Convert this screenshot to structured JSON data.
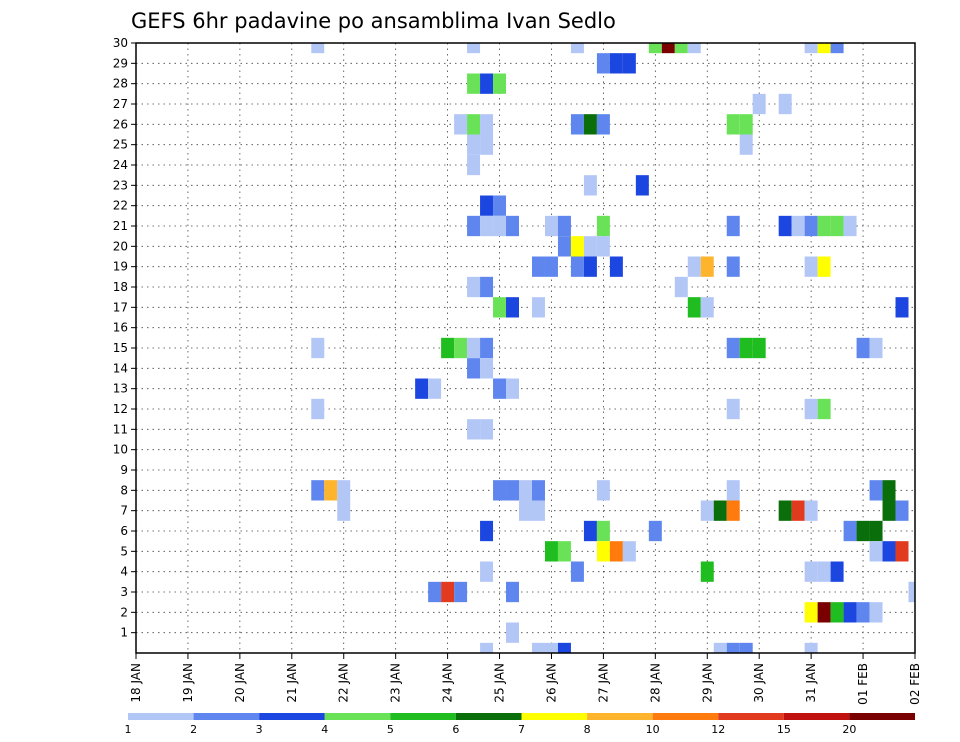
{
  "chart_data": {
    "type": "heatmap",
    "title": "GEFS 6hr padavine po ansamblima Ivan Sedlo",
    "xlabel": "",
    "ylabel": "",
    "x_tick_labels": [
      "18 JAN",
      "19 JAN",
      "20 JAN",
      "21 JAN",
      "22 JAN",
      "23 JAN",
      "24 JAN",
      "25 JAN",
      "26 JAN",
      "27 JAN",
      "28 JAN",
      "29 JAN",
      "30 JAN",
      "31 JAN",
      "01 FEB",
      "02 FEB"
    ],
    "y_tick_labels": [
      "1",
      "2",
      "3",
      "4",
      "5",
      "6",
      "7",
      "8",
      "9",
      "10",
      "11",
      "12",
      "13",
      "14",
      "15",
      "16",
      "17",
      "18",
      "19",
      "20",
      "21",
      "22",
      "23",
      "24",
      "25",
      "26",
      "27",
      "28",
      "29",
      "30"
    ],
    "xlim": [
      0,
      60
    ],
    "ylim": [
      0,
      30
    ],
    "grid": true,
    "time_step_hours": 6,
    "colorbar": {
      "levels": [
        "1",
        "2",
        "3",
        "4",
        "5",
        "6",
        "7",
        "8",
        "10",
        "12",
        "15",
        "20"
      ],
      "colors": [
        "#b3c7f7",
        "#5e86ee",
        "#1c46e0",
        "#6ae258",
        "#1fbd1f",
        "#0a6e0a",
        "#ffff00",
        "#ffb42e",
        "#ff7b0e",
        "#e23a1e",
        "#c01010",
        "#7a0000"
      ]
    },
    "cells": [
      [
        14,
        30,
        0
      ],
      [
        26,
        30,
        0
      ],
      [
        34,
        30,
        0
      ],
      [
        40,
        30,
        3
      ],
      [
        41,
        30,
        11
      ],
      [
        42,
        30,
        3
      ],
      [
        43,
        30,
        0
      ],
      [
        52,
        30,
        0
      ],
      [
        53,
        30,
        6
      ],
      [
        54,
        30,
        1
      ],
      [
        36,
        29,
        1
      ],
      [
        37,
        29,
        2
      ],
      [
        38,
        29,
        2
      ],
      [
        26,
        28,
        3
      ],
      [
        27,
        28,
        2
      ],
      [
        28,
        28,
        3
      ],
      [
        48,
        27,
        0
      ],
      [
        50,
        27,
        0
      ],
      [
        25,
        26,
        0
      ],
      [
        26,
        26,
        3
      ],
      [
        27,
        26,
        0
      ],
      [
        34,
        26,
        1
      ],
      [
        35,
        26,
        5
      ],
      [
        36,
        26,
        1
      ],
      [
        46,
        26,
        3
      ],
      [
        47,
        26,
        3
      ],
      [
        26,
        25,
        0
      ],
      [
        27,
        25,
        0
      ],
      [
        47,
        25,
        0
      ],
      [
        26,
        24,
        0
      ],
      [
        35,
        23,
        0
      ],
      [
        39,
        23,
        2
      ],
      [
        27,
        22,
        2
      ],
      [
        28,
        22,
        1
      ],
      [
        26,
        21,
        1
      ],
      [
        27,
        21,
        0
      ],
      [
        28,
        21,
        0
      ],
      [
        29,
        21,
        1
      ],
      [
        32,
        21,
        0
      ],
      [
        33,
        21,
        1
      ],
      [
        36,
        21,
        3
      ],
      [
        46,
        21,
        1
      ],
      [
        50,
        21,
        2
      ],
      [
        51,
        21,
        0
      ],
      [
        52,
        21,
        1
      ],
      [
        53,
        21,
        3
      ],
      [
        54,
        21,
        3
      ],
      [
        55,
        21,
        0
      ],
      [
        33,
        20,
        1
      ],
      [
        34,
        20,
        6
      ],
      [
        35,
        20,
        0
      ],
      [
        36,
        20,
        0
      ],
      [
        31,
        19,
        1
      ],
      [
        32,
        19,
        1
      ],
      [
        34,
        19,
        1
      ],
      [
        35,
        19,
        2
      ],
      [
        37,
        19,
        2
      ],
      [
        43,
        19,
        0
      ],
      [
        44,
        19,
        7
      ],
      [
        46,
        19,
        1
      ],
      [
        52,
        19,
        0
      ],
      [
        53,
        19,
        6
      ],
      [
        26,
        18,
        0
      ],
      [
        27,
        18,
        1
      ],
      [
        42,
        18,
        0
      ],
      [
        28,
        17,
        3
      ],
      [
        29,
        17,
        2
      ],
      [
        31,
        17,
        0
      ],
      [
        43,
        17,
        4
      ],
      [
        44,
        17,
        0
      ],
      [
        59,
        17,
        2
      ],
      [
        14,
        15,
        0
      ],
      [
        24,
        15,
        4
      ],
      [
        25,
        15,
        3
      ],
      [
        26,
        15,
        0
      ],
      [
        27,
        15,
        1
      ],
      [
        46,
        15,
        1
      ],
      [
        47,
        15,
        4
      ],
      [
        48,
        15,
        4
      ],
      [
        56,
        15,
        1
      ],
      [
        57,
        15,
        0
      ],
      [
        26,
        14,
        1
      ],
      [
        27,
        14,
        0
      ],
      [
        22,
        13,
        2
      ],
      [
        23,
        13,
        0
      ],
      [
        28,
        13,
        1
      ],
      [
        29,
        13,
        0
      ],
      [
        14,
        12,
        0
      ],
      [
        46,
        12,
        0
      ],
      [
        52,
        12,
        0
      ],
      [
        53,
        12,
        3
      ],
      [
        26,
        11,
        0
      ],
      [
        27,
        11,
        0
      ],
      [
        14,
        8,
        1
      ],
      [
        15,
        8,
        7
      ],
      [
        16,
        8,
        0
      ],
      [
        28,
        8,
        1
      ],
      [
        29,
        8,
        1
      ],
      [
        30,
        8,
        0
      ],
      [
        31,
        8,
        1
      ],
      [
        36,
        8,
        0
      ],
      [
        46,
        8,
        0
      ],
      [
        57,
        8,
        1
      ],
      [
        58,
        8,
        5
      ],
      [
        16,
        7,
        0
      ],
      [
        30,
        7,
        0
      ],
      [
        31,
        7,
        0
      ],
      [
        44,
        7,
        0
      ],
      [
        45,
        7,
        5
      ],
      [
        46,
        7,
        8
      ],
      [
        50,
        7,
        5
      ],
      [
        51,
        7,
        9
      ],
      [
        52,
        7,
        0
      ],
      [
        58,
        7,
        5
      ],
      [
        59,
        7,
        1
      ],
      [
        27,
        6,
        2
      ],
      [
        35,
        6,
        2
      ],
      [
        36,
        6,
        3
      ],
      [
        40,
        6,
        1
      ],
      [
        55,
        6,
        1
      ],
      [
        56,
        6,
        5
      ],
      [
        57,
        6,
        5
      ],
      [
        32,
        5,
        4
      ],
      [
        33,
        5,
        3
      ],
      [
        36,
        5,
        6
      ],
      [
        37,
        5,
        8
      ],
      [
        38,
        5,
        0
      ],
      [
        57,
        5,
        0
      ],
      [
        58,
        5,
        2
      ],
      [
        59,
        5,
        9
      ],
      [
        27,
        4,
        0
      ],
      [
        34,
        4,
        1
      ],
      [
        44,
        4,
        4
      ],
      [
        52,
        4,
        0
      ],
      [
        53,
        4,
        0
      ],
      [
        54,
        4,
        2
      ],
      [
        23,
        3,
        1
      ],
      [
        24,
        3,
        9
      ],
      [
        25,
        3,
        1
      ],
      [
        29,
        3,
        1
      ],
      [
        60,
        3,
        0
      ],
      [
        52,
        2,
        6
      ],
      [
        53,
        2,
        11
      ],
      [
        54,
        2,
        4
      ],
      [
        55,
        2,
        2
      ],
      [
        56,
        2,
        1
      ],
      [
        57,
        2,
        0
      ],
      [
        29,
        1,
        0
      ],
      [
        27,
        0,
        0
      ],
      [
        31,
        0,
        0
      ],
      [
        32,
        0,
        0
      ],
      [
        33,
        0,
        2
      ],
      [
        45,
        0,
        0
      ],
      [
        46,
        0,
        1
      ],
      [
        47,
        0,
        1
      ],
      [
        52,
        0,
        0
      ]
    ]
  }
}
